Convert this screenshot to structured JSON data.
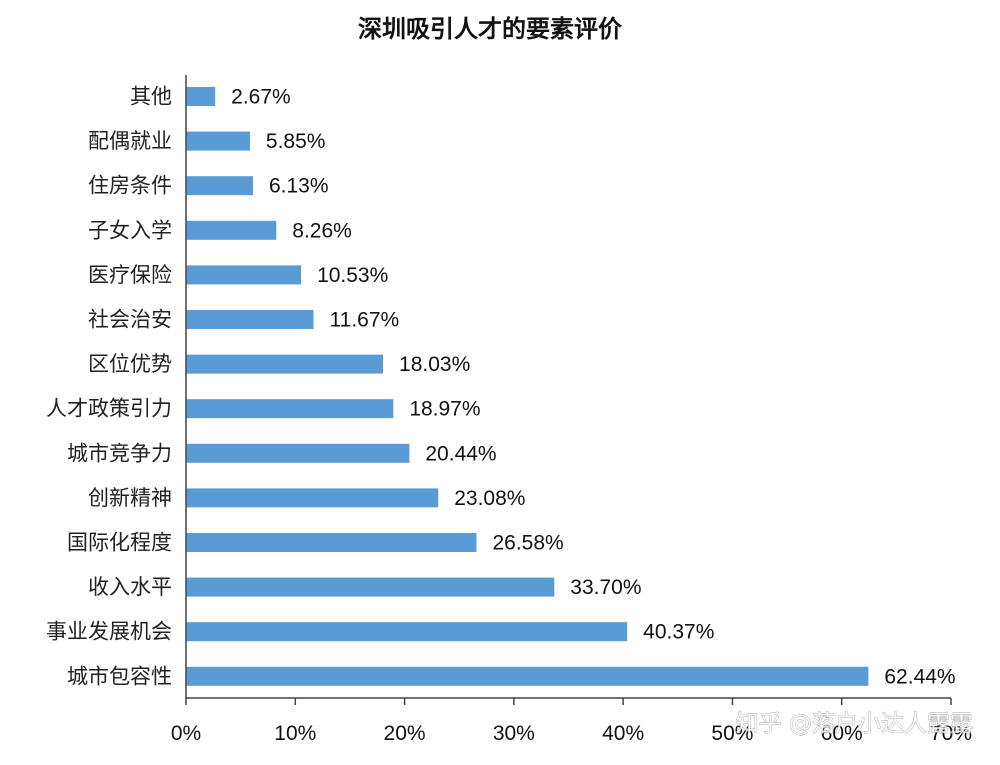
{
  "chart_data": {
    "type": "bar",
    "orientation": "horizontal",
    "title": "深圳吸引人才的要素评价",
    "categories": [
      "其他",
      "配偶就业",
      "住房条件",
      "子女入学",
      "医疗保险",
      "社会治安",
      "区位优势",
      "人才政策引力",
      "城市竞争力",
      "创新精神",
      "国际化程度",
      "收入水平",
      "事业发展机会",
      "城市包容性"
    ],
    "values": [
      2.67,
      5.85,
      6.13,
      8.26,
      10.53,
      11.67,
      18.03,
      18.97,
      20.44,
      23.08,
      26.58,
      33.7,
      40.37,
      62.44
    ],
    "value_labels": [
      "2.67%",
      "5.85%",
      "6.13%",
      "8.26%",
      "10.53%",
      "11.67%",
      "18.03%",
      "18.97%",
      "20.44%",
      "23.08%",
      "26.58%",
      "33.70%",
      "40.37%",
      "62.44%"
    ],
    "xlim": [
      0,
      70
    ],
    "xticks": [
      "0%",
      "10%",
      "20%",
      "30%",
      "40%",
      "50%",
      "60%",
      "70%"
    ],
    "grid": false,
    "bar_color": "#5b9bd5",
    "axis_color": "#444444"
  },
  "watermark": "知乎 @落户小达人露露"
}
